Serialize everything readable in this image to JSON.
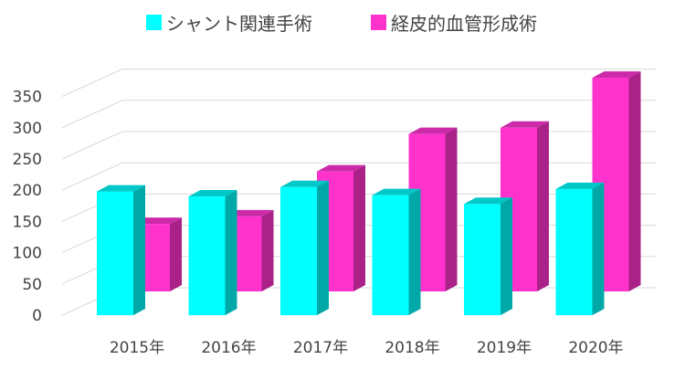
{
  "chart_data": {
    "type": "bar",
    "title": "",
    "xlabel": "",
    "ylabel": "",
    "categories": [
      "2015年",
      "2016年",
      "2017年",
      "2018年",
      "2019年",
      "2020年"
    ],
    "series": [
      {
        "name": "シャント関連手術",
        "color": "#00FFFF",
        "side": "#00A8A8",
        "top": "#00C8C8",
        "values": [
          198,
          190,
          205,
          192,
          178,
          202
        ]
      },
      {
        "name": "経皮的血管形成術",
        "color": "#FF33CC",
        "side": "#AA2288",
        "top": "#CC2AA8",
        "values": [
          108,
          120,
          192,
          252,
          262,
          342
        ]
      }
    ],
    "yticks": [
      0,
      50,
      100,
      150,
      200,
      250,
      300,
      350
    ],
    "ylim": [
      0,
      350
    ],
    "grid": true,
    "legend": "top"
  }
}
